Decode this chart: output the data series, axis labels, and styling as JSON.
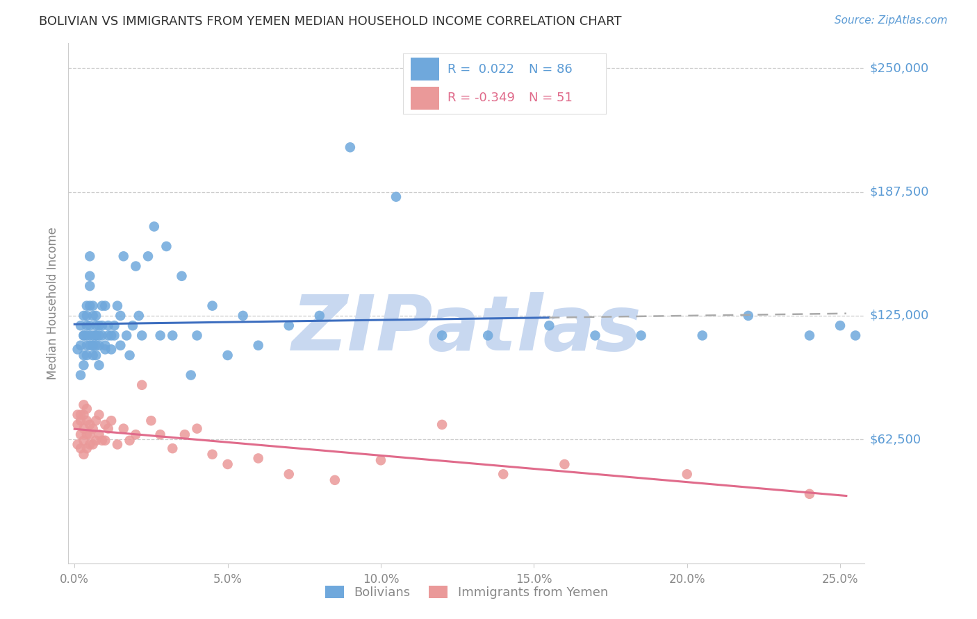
{
  "title": "BOLIVIAN VS IMMIGRANTS FROM YEMEN MEDIAN HOUSEHOLD INCOME CORRELATION CHART",
  "source": "Source: ZipAtlas.com",
  "ylabel": "Median Household Income",
  "xlabel_ticks": [
    "0.0%",
    "5.0%",
    "10.0%",
    "15.0%",
    "20.0%",
    "25.0%"
  ],
  "xlabel_vals": [
    0.0,
    0.05,
    0.1,
    0.15,
    0.2,
    0.25
  ],
  "ylim": [
    0,
    262500
  ],
  "xlim": [
    -0.002,
    0.258
  ],
  "ytick_vals": [
    62500,
    125000,
    187500,
    250000
  ],
  "ytick_labels": [
    "$62,500",
    "$125,000",
    "$187,500",
    "$250,000"
  ],
  "blue_color": "#6fa8dc",
  "pink_color": "#ea9999",
  "blue_line_color": "#3d6ebf",
  "pink_line_color": "#e06b8b",
  "gray_dash_color": "#aaaaaa",
  "grid_color": "#cccccc",
  "blue_R": 0.022,
  "blue_N": 86,
  "pink_R": -0.349,
  "pink_N": 51,
  "watermark": "ZIPatlas",
  "watermark_color": "#c8d8f0",
  "legend_label_blue": "Bolivians",
  "legend_label_pink": "Immigrants from Yemen",
  "blue_points_x": [
    0.001,
    0.002,
    0.002,
    0.002,
    0.003,
    0.003,
    0.003,
    0.003,
    0.003,
    0.004,
    0.004,
    0.004,
    0.004,
    0.004,
    0.004,
    0.005,
    0.005,
    0.005,
    0.005,
    0.005,
    0.005,
    0.005,
    0.006,
    0.006,
    0.006,
    0.006,
    0.006,
    0.006,
    0.007,
    0.007,
    0.007,
    0.007,
    0.007,
    0.007,
    0.008,
    0.008,
    0.008,
    0.008,
    0.009,
    0.009,
    0.009,
    0.01,
    0.01,
    0.01,
    0.011,
    0.011,
    0.012,
    0.012,
    0.013,
    0.013,
    0.014,
    0.015,
    0.015,
    0.016,
    0.017,
    0.018,
    0.019,
    0.02,
    0.021,
    0.022,
    0.024,
    0.026,
    0.028,
    0.03,
    0.032,
    0.035,
    0.038,
    0.04,
    0.045,
    0.05,
    0.055,
    0.06,
    0.07,
    0.08,
    0.09,
    0.105,
    0.12,
    0.135,
    0.155,
    0.17,
    0.185,
    0.205,
    0.22,
    0.24,
    0.25,
    0.255
  ],
  "blue_points_y": [
    108000,
    95000,
    110000,
    120000,
    115000,
    105000,
    125000,
    115000,
    100000,
    105000,
    125000,
    130000,
    115000,
    110000,
    120000,
    155000,
    145000,
    140000,
    130000,
    120000,
    115000,
    110000,
    110000,
    115000,
    125000,
    130000,
    110000,
    105000,
    115000,
    125000,
    115000,
    110000,
    120000,
    105000,
    115000,
    110000,
    120000,
    100000,
    130000,
    120000,
    115000,
    110000,
    108000,
    130000,
    115000,
    120000,
    108000,
    115000,
    120000,
    115000,
    130000,
    110000,
    125000,
    155000,
    115000,
    105000,
    120000,
    150000,
    125000,
    115000,
    155000,
    170000,
    115000,
    160000,
    115000,
    145000,
    95000,
    115000,
    130000,
    105000,
    125000,
    110000,
    120000,
    125000,
    210000,
    185000,
    115000,
    115000,
    120000,
    115000,
    115000,
    115000,
    125000,
    115000,
    120000,
    115000
  ],
  "pink_points_x": [
    0.001,
    0.001,
    0.001,
    0.002,
    0.002,
    0.002,
    0.002,
    0.003,
    0.003,
    0.003,
    0.003,
    0.003,
    0.004,
    0.004,
    0.004,
    0.004,
    0.005,
    0.005,
    0.005,
    0.006,
    0.006,
    0.007,
    0.007,
    0.008,
    0.008,
    0.009,
    0.01,
    0.01,
    0.011,
    0.012,
    0.014,
    0.016,
    0.018,
    0.02,
    0.022,
    0.025,
    0.028,
    0.032,
    0.036,
    0.04,
    0.045,
    0.05,
    0.06,
    0.07,
    0.085,
    0.1,
    0.12,
    0.14,
    0.16,
    0.2,
    0.24
  ],
  "pink_points_y": [
    75000,
    70000,
    60000,
    75000,
    65000,
    58000,
    72000,
    80000,
    75000,
    68000,
    62000,
    55000,
    78000,
    72000,
    65000,
    58000,
    70000,
    65000,
    60000,
    68000,
    60000,
    72000,
    62000,
    75000,
    65000,
    62000,
    70000,
    62000,
    68000,
    72000,
    60000,
    68000,
    62000,
    65000,
    90000,
    72000,
    65000,
    58000,
    65000,
    68000,
    55000,
    50000,
    53000,
    45000,
    42000,
    52000,
    70000,
    45000,
    50000,
    45000,
    35000
  ]
}
